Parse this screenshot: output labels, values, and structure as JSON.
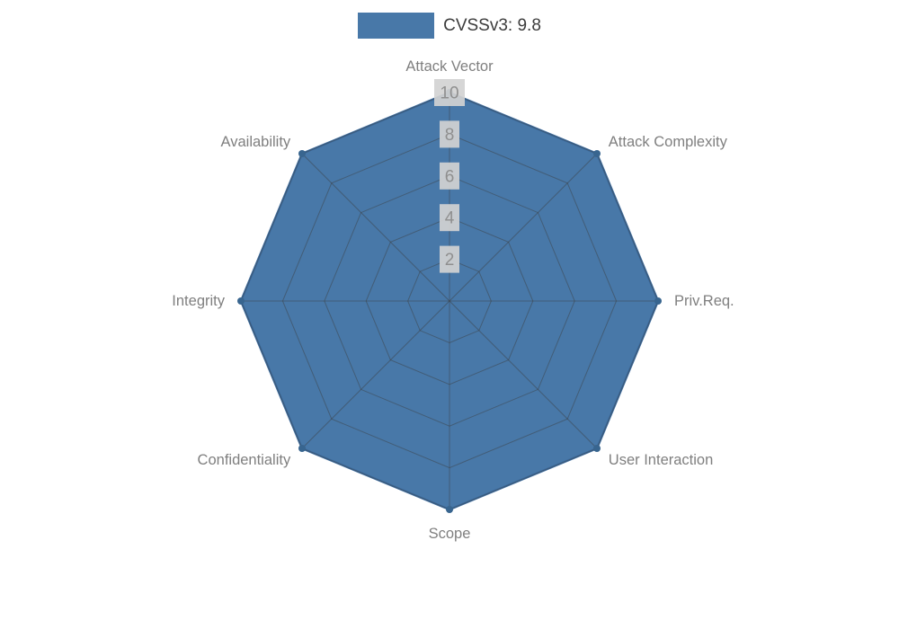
{
  "legend": {
    "label": "CVSSv3: 9.8",
    "swatch_color": "#4878a8"
  },
  "chart_data": {
    "type": "radar",
    "title": "",
    "categories": [
      "Attack Vector",
      "Attack Complexity",
      "Priv.Req.",
      "User Interaction",
      "Scope",
      "Confidentiality",
      "Integrity",
      "Availability"
    ],
    "series": [
      {
        "name": "CVSSv3: 9.8",
        "values": [
          10,
          10,
          10,
          10,
          10,
          10,
          10,
          10
        ]
      }
    ],
    "ticks": [
      2,
      4,
      6,
      8,
      10
    ],
    "rlim": [
      0,
      10
    ],
    "grid": true,
    "legend_position": "top-center",
    "fill_color": "#4878a8",
    "edge_color": "#3d6da0",
    "marker_color": "#38658f",
    "grid_line_color": "rgba(60,60,60,0.45)",
    "tick_box_color": "rgba(211,211,211,0.92)",
    "tick_text_color": "#8f8f8f",
    "axis_label_color": "#7f7f7f"
  }
}
